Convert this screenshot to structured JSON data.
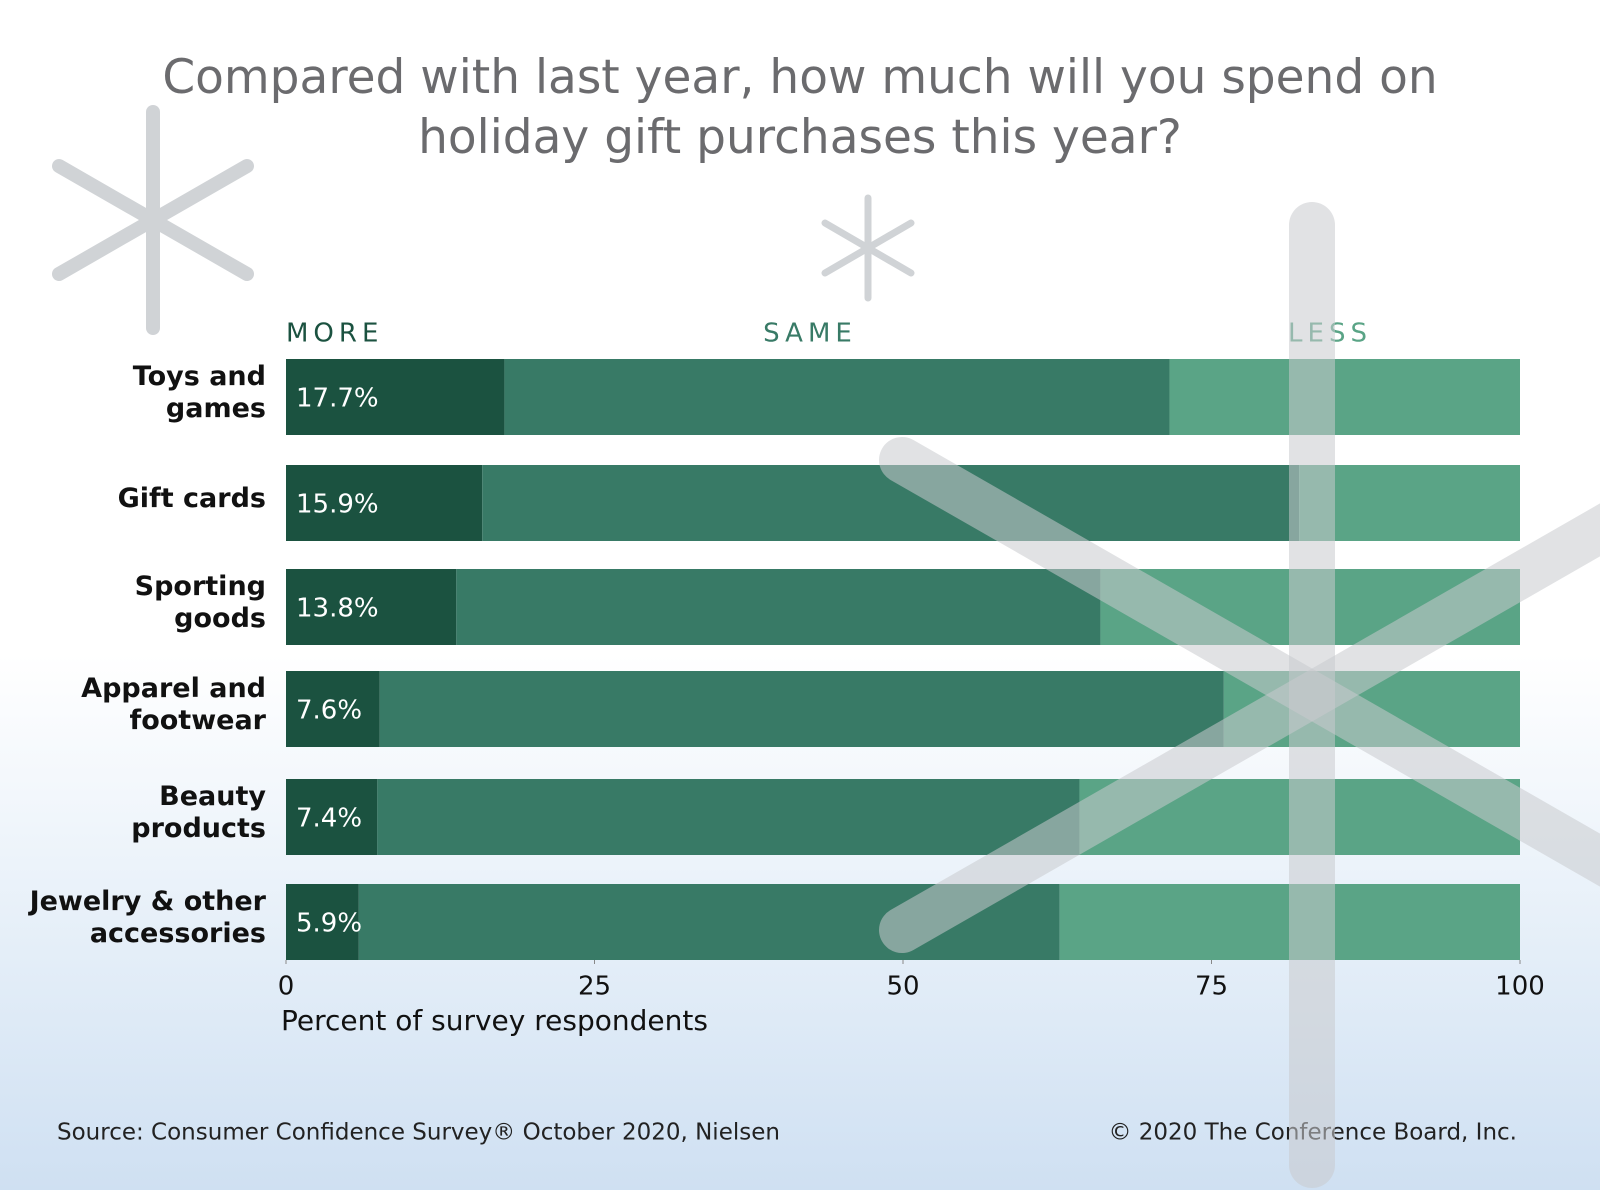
{
  "chart_data": {
    "type": "stacked-bar-horizontal",
    "title": "Compared with last year, how much will you spend on holiday gift purchases this year?",
    "categories": [
      "Toys and\ngames",
      "Gift cards",
      "Sporting\ngoods",
      "Apparel and\nfootwear",
      "Beauty\nproducts",
      "Jewelry & other\naccessories"
    ],
    "series": [
      {
        "name": "MORE",
        "color": "#1b5240",
        "values": [
          17.7,
          15.9,
          13.8,
          7.6,
          7.4,
          5.9
        ],
        "value_labels": [
          "17.7%",
          "15.9%",
          "13.8%",
          "7.6%",
          "7.4%",
          "5.9%"
        ]
      },
      {
        "name": "SAME",
        "color": "#387a66",
        "values": [
          53.9,
          66.2,
          52.2,
          68.4,
          56.9,
          56.8
        ]
      },
      {
        "name": "LESS",
        "color": "#5aa486",
        "values": [
          28.4,
          17.9,
          34.0,
          24.0,
          35.7,
          37.3
        ]
      }
    ],
    "xlim": [
      0,
      100
    ],
    "xticks": [
      0,
      25,
      50,
      75,
      100
    ],
    "xlabel": "Percent of survey respondents",
    "source": "Source: Consumer Confidence Survey® October 2020, Nielsen",
    "copyright": "© 2020 The Conference Board, Inc."
  }
}
